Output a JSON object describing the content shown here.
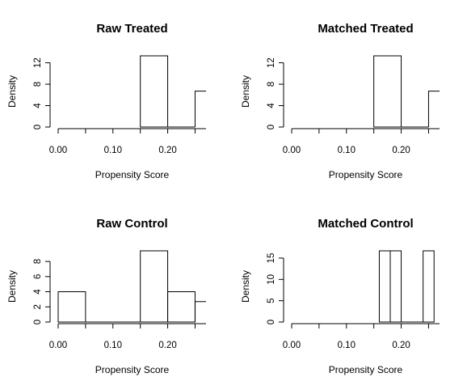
{
  "chart_data": [
    {
      "type": "histogram",
      "title": "Raw Treated",
      "xlabel": "Propensity Score",
      "ylabel": "Density",
      "xlim": [
        0,
        0.27
      ],
      "ylim": [
        0,
        13.3
      ],
      "xticks": [
        "0.00",
        "0.10",
        "0.20"
      ],
      "yticks": [
        "0",
        "4",
        "8",
        "12"
      ],
      "bins": [
        {
          "x0": 0.15,
          "x1": 0.2,
          "density": 13.3
        },
        {
          "x0": 0.2,
          "x1": 0.25,
          "density": 0
        },
        {
          "x0": 0.25,
          "x1": 0.3,
          "density": 6.7
        }
      ]
    },
    {
      "type": "histogram",
      "title": "Matched Treated",
      "xlabel": "Propensity Score",
      "ylabel": "Density",
      "xlim": [
        0,
        0.27
      ],
      "ylim": [
        0,
        13.3
      ],
      "xticks": [
        "0.00",
        "0.10",
        "0.20"
      ],
      "yticks": [
        "0",
        "4",
        "8",
        "12"
      ],
      "bins": [
        {
          "x0": 0.15,
          "x1": 0.2,
          "density": 13.3
        },
        {
          "x0": 0.2,
          "x1": 0.25,
          "density": 0
        },
        {
          "x0": 0.25,
          "x1": 0.3,
          "density": 6.7
        }
      ]
    },
    {
      "type": "histogram",
      "title": "Raw Control",
      "xlabel": "Propensity Score",
      "ylabel": "Density",
      "xlim": [
        0,
        0.27
      ],
      "ylim": [
        0,
        9.4
      ],
      "xticks": [
        "0.00",
        "0.10",
        "0.20"
      ],
      "yticks": [
        "0",
        "2",
        "4",
        "6",
        "8"
      ],
      "bins": [
        {
          "x0": 0.0,
          "x1": 0.05,
          "density": 4.0
        },
        {
          "x0": 0.05,
          "x1": 0.1,
          "density": 0
        },
        {
          "x0": 0.1,
          "x1": 0.15,
          "density": 0
        },
        {
          "x0": 0.15,
          "x1": 0.2,
          "density": 9.4
        },
        {
          "x0": 0.2,
          "x1": 0.25,
          "density": 4.0
        },
        {
          "x0": 0.25,
          "x1": 0.3,
          "density": 2.7
        }
      ]
    },
    {
      "type": "histogram",
      "title": "Matched Control",
      "xlabel": "Propensity Score",
      "ylabel": "Density",
      "xlim": [
        0,
        0.27
      ],
      "ylim": [
        0,
        16.7
      ],
      "xticks": [
        "0.00",
        "0.10",
        "0.20"
      ],
      "yticks": [
        "0",
        "5",
        "10",
        "15"
      ],
      "bins": [
        {
          "x0": 0.16,
          "x1": 0.18,
          "density": 16.7
        },
        {
          "x0": 0.18,
          "x1": 0.2,
          "density": 16.7
        },
        {
          "x0": 0.2,
          "x1": 0.22,
          "density": 0
        },
        {
          "x0": 0.22,
          "x1": 0.24,
          "density": 0
        },
        {
          "x0": 0.24,
          "x1": 0.26,
          "density": 16.7
        }
      ]
    }
  ]
}
